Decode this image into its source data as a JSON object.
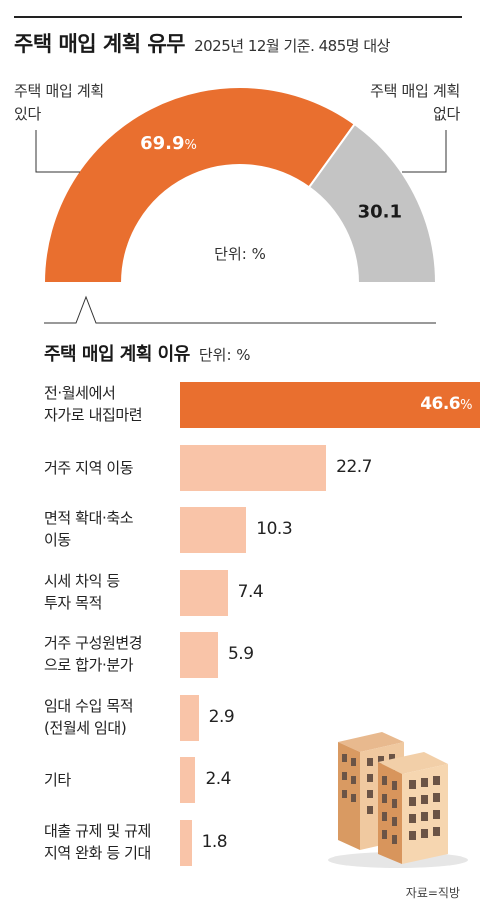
{
  "header": {
    "title": "주택 매입 계획 유무",
    "subtitle": "2025년 12월 기준. 485명 대상"
  },
  "chart_data": [
    {
      "type": "pie",
      "style": "semicircle-donut",
      "title": "주택 매입 계획 유무",
      "unit_label": "단위: %",
      "slices": [
        {
          "label": "주택 매입 계획 있다",
          "value": 69.9,
          "value_label": "69.9",
          "suffix": "%",
          "color": "#e96f2f"
        },
        {
          "label": "주택 매입 계획 없다",
          "value": 30.1,
          "value_label": "30.1",
          "suffix": "",
          "color": "#c4c4c4"
        }
      ]
    },
    {
      "type": "bar",
      "orientation": "horizontal",
      "title": "주택 매입 계획 이유",
      "unit_label": "단위: %",
      "xlim": [
        0,
        46.6
      ],
      "highlight_color": "#e96f2f",
      "bar_color": "#f9c4a8",
      "categories": [
        "전·월세에서\n자가로 내집마련",
        "거주 지역 이동",
        "면적 확대·축소\n이동",
        "시세 차익 등\n투자 목적",
        "거주 구성원변경\n으로 합가·분가",
        "임대 수입 목적\n(전월세 임대)",
        "기타",
        "대출 규제 및 규제\n지역 완화 등 기대"
      ],
      "values": [
        46.6,
        22.7,
        10.3,
        7.4,
        5.9,
        2.9,
        2.4,
        1.8
      ],
      "value_labels": [
        "46.6",
        "22.7",
        "10.3",
        "7.4",
        "5.9",
        "2.9",
        "2.4",
        "1.8"
      ],
      "value_suffixes": [
        "%",
        "",
        "",
        "",
        "",
        "",
        "",
        ""
      ]
    }
  ],
  "source": "자료=직방",
  "icons": {
    "building": "building-icon"
  }
}
